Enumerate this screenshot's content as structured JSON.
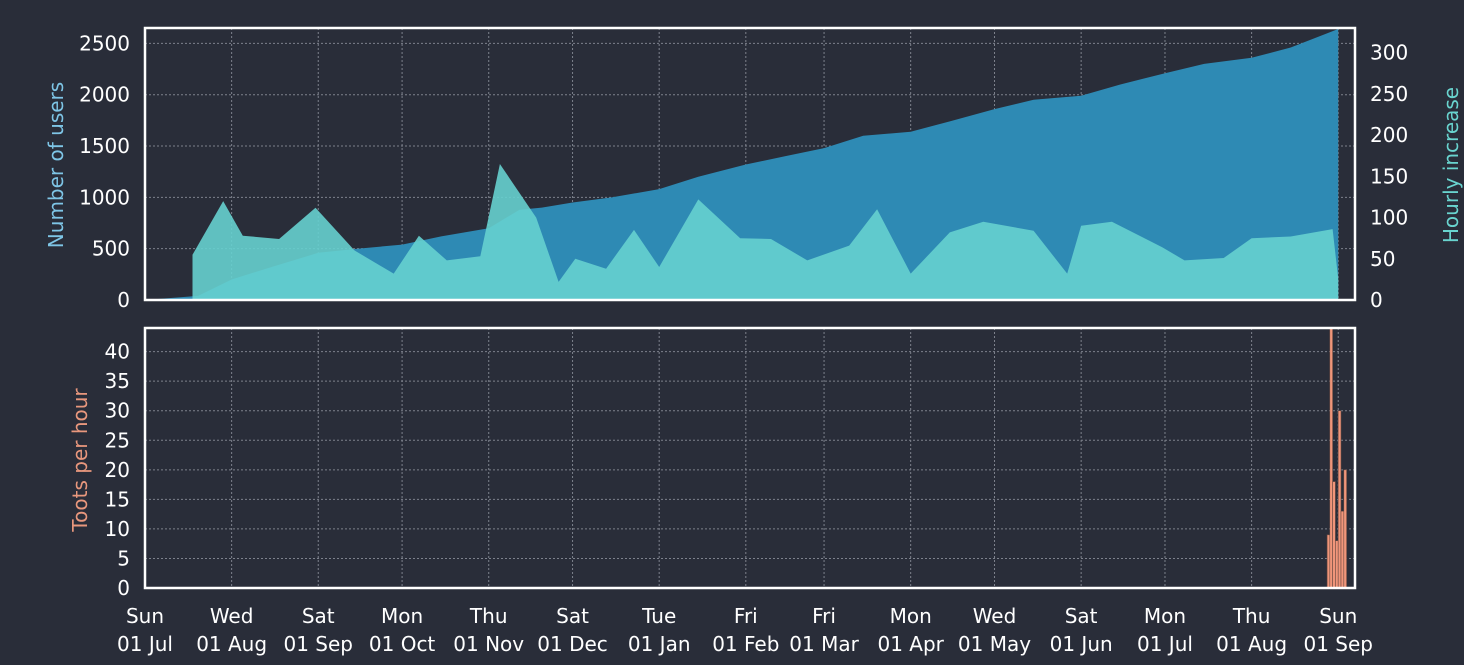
{
  "chart_data": [
    {
      "type": "area",
      "panel": "top",
      "ylabel": "Number of users",
      "y2label": "Hourly increase",
      "ylim": [
        0,
        2650
      ],
      "y2lim": [
        0,
        330
      ],
      "yticks": [
        0,
        500,
        1000,
        1500,
        2000,
        2500
      ],
      "y2ticks": [
        0,
        50,
        100,
        150,
        200,
        250,
        300
      ],
      "grid": true,
      "colors": {
        "users": "#2e8ab4",
        "hourly": "#66d0cf",
        "label_users": "#7ec5e6",
        "label_hourly": "#69d4cf"
      },
      "series": [
        {
          "axis": "left",
          "x": [
            "2018-07-01",
            "2018-07-20",
            "2018-08-01",
            "2018-08-15",
            "2018-09-01",
            "2018-09-15",
            "2018-10-01",
            "2018-10-15",
            "2018-11-01",
            "2018-11-12",
            "2018-11-20",
            "2018-12-01",
            "2018-12-15",
            "2019-01-01",
            "2019-01-15",
            "2019-02-01",
            "2019-02-15",
            "2019-03-01",
            "2019-03-15",
            "2019-04-01",
            "2019-04-15",
            "2019-05-01",
            "2019-05-15",
            "2019-06-01",
            "2019-06-15",
            "2019-07-01",
            "2019-07-15",
            "2019-08-01",
            "2019-08-15",
            "2019-09-01"
          ],
          "values": [
            0,
            40,
            200,
            320,
            460,
            500,
            540,
            620,
            700,
            880,
            900,
            950,
            1000,
            1080,
            1200,
            1320,
            1400,
            1480,
            1600,
            1640,
            1740,
            1860,
            1950,
            1990,
            2100,
            2210,
            2300,
            2360,
            2460,
            2640
          ]
        },
        {
          "axis": "right",
          "x": [
            "2018-07-18",
            "2018-07-18",
            "2018-07-29",
            "2018-08-05",
            "2018-08-18",
            "2018-08-31",
            "2018-09-14",
            "2018-09-28",
            "2018-10-07",
            "2018-10-17",
            "2018-10-29",
            "2018-11-05",
            "2018-11-18",
            "2018-11-26",
            "2018-12-02",
            "2018-12-13",
            "2018-12-23",
            "2019-01-01",
            "2019-01-15",
            "2019-01-30",
            "2019-02-10",
            "2019-02-23",
            "2019-03-10",
            "2019-03-20",
            "2019-04-01",
            "2019-04-15",
            "2019-04-27",
            "2019-05-15",
            "2019-05-27",
            "2019-06-01",
            "2019-06-12",
            "2019-06-30",
            "2019-07-08",
            "2019-07-22",
            "2019-08-01",
            "2019-08-15",
            "2019-08-30",
            "2019-09-01",
            "2019-09-01"
          ],
          "values": [
            0,
            55,
            120,
            78,
            74,
            112,
            60,
            32,
            78,
            48,
            53,
            165,
            100,
            22,
            50,
            38,
            85,
            40,
            122,
            75,
            74,
            48,
            66,
            110,
            32,
            82,
            95,
            84,
            32,
            90,
            95,
            64,
            48,
            51,
            75,
            77,
            86,
            26,
            0
          ]
        }
      ]
    },
    {
      "type": "bar",
      "panel": "bottom",
      "ylabel": "Toots per hour",
      "ylim": [
        0,
        44
      ],
      "yticks": [
        0,
        5,
        10,
        15,
        20,
        25,
        30,
        35,
        40
      ],
      "grid": true,
      "colors": {
        "bars": "#f0957a",
        "label": "#e8977d",
        "stroke": "#6b4b42"
      },
      "x": [
        "2019-08-28",
        "2019-08-29",
        "2019-08-30",
        "2019-08-31",
        "2019-09-01",
        "2019-09-02",
        "2019-09-03"
      ],
      "values": [
        9,
        44,
        18,
        8,
        30,
        13,
        20
      ]
    }
  ],
  "x_axis": {
    "ticks": [
      {
        "date": "2018-07-01",
        "day": "Sun",
        "label": "01 Jul"
      },
      {
        "date": "2018-08-01",
        "day": "Wed",
        "label": "01 Aug"
      },
      {
        "date": "2018-09-01",
        "day": "Sat",
        "label": "01 Sep"
      },
      {
        "date": "2018-10-01",
        "day": "Mon",
        "label": "01 Oct"
      },
      {
        "date": "2018-11-01",
        "day": "Thu",
        "label": "01 Nov"
      },
      {
        "date": "2018-12-01",
        "day": "Sat",
        "label": "01 Dec"
      },
      {
        "date": "2019-01-01",
        "day": "Tue",
        "label": "01 Jan"
      },
      {
        "date": "2019-02-01",
        "day": "Fri",
        "label": "01 Feb"
      },
      {
        "date": "2019-03-01",
        "day": "Fri",
        "label": "01 Mar"
      },
      {
        "date": "2019-04-01",
        "day": "Mon",
        "label": "01 Apr"
      },
      {
        "date": "2019-05-01",
        "day": "Wed",
        "label": "01 May"
      },
      {
        "date": "2019-06-01",
        "day": "Sat",
        "label": "01 Jun"
      },
      {
        "date": "2019-07-01",
        "day": "Mon",
        "label": "01 Jul"
      },
      {
        "date": "2019-08-01",
        "day": "Thu",
        "label": "01 Aug"
      },
      {
        "date": "2019-09-01",
        "day": "Sun",
        "label": "01 Sep"
      }
    ],
    "range": [
      "2018-07-01",
      "2019-09-07"
    ]
  },
  "theme": {
    "background": "#292d39",
    "frame": "#ffffff",
    "text": "#ffffff",
    "grid": "#9a9ea8"
  }
}
